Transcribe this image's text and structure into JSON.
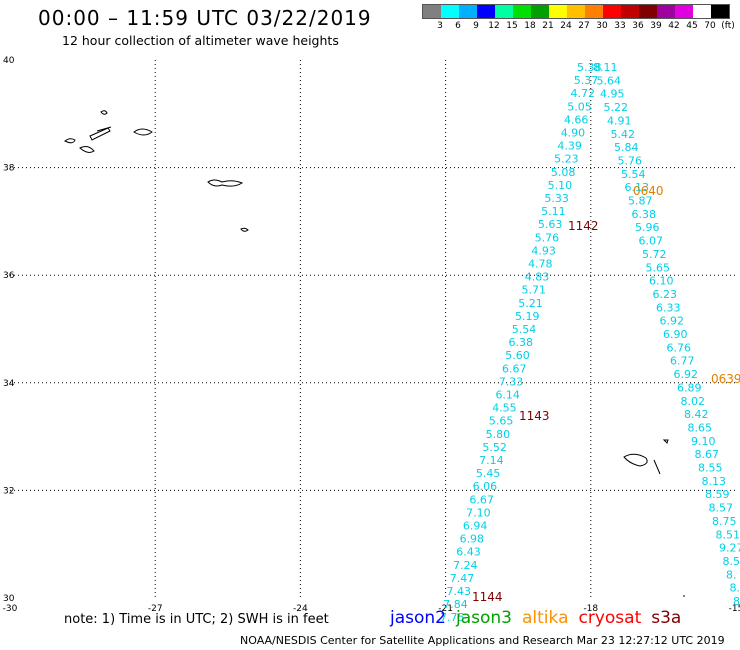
{
  "header": {
    "title": "00:00 – 11:59 UTC 03/22/2019",
    "subtitle": "12 hour collection of altimeter wave heights"
  },
  "color_legend": {
    "colors": [
      "#808080",
      "#00ffff",
      "#00b0ff",
      "#0000ff",
      "#00ffa0",
      "#00e000",
      "#00a000",
      "#ffff00",
      "#ffc000",
      "#ff8000",
      "#ff0000",
      "#c00000",
      "#800000",
      "#a000a0",
      "#e000e0",
      "#ffffff",
      "#000000"
    ],
    "tick_labels": [
      "3",
      "6",
      "9",
      "12",
      "15",
      "18",
      "21",
      "24",
      "27",
      "30",
      "33",
      "36",
      "39",
      "42",
      "45",
      "70",
      "(ft)"
    ]
  },
  "map": {
    "lon_range": [
      -30,
      -15
    ],
    "lat_range": [
      30,
      40
    ],
    "lon_ticks": [
      "-30",
      "-27",
      "-24",
      "-21",
      "-18",
      "-15"
    ],
    "lat_ticks": [
      "30",
      "32",
      "34",
      "36",
      "38",
      "40"
    ]
  },
  "tracks": {
    "pass_1142": [
      "5.38",
      "5.37",
      "4.72",
      "5.05",
      "4.66",
      "4.90",
      "4.39",
      "5.23",
      "5.08",
      "5.10",
      "5.33",
      "5.11",
      "5.63",
      "5.76",
      "4.93",
      "4.78",
      "4.83",
      "5.71",
      "5.21",
      "5.19",
      "5.54",
      "6.38",
      "5.60",
      "6.67",
      "7.33",
      "6.14",
      "4.55",
      "5.65",
      "5.80",
      "5.52",
      "7.14",
      "5.45",
      "6.06",
      "6.67",
      "7.10",
      "6.94",
      "6.98",
      "6.43",
      "7.24",
      "7.47",
      "7.43",
      "7.84",
      "7.75"
    ],
    "pass_0640": [
      "8.11",
      "5.64",
      "4.95",
      "5.22",
      "4.91",
      "5.42",
      "5.84",
      "5.76",
      "5.54",
      "6.13",
      "5.87",
      "6.38",
      "5.96",
      "6.07",
      "5.72",
      "5.65",
      "6.10",
      "6.23",
      "6.33",
      "6.92",
      "6.90",
      "6.76",
      "6.77",
      "6.92",
      "6.89",
      "8.02",
      "8.42",
      "8.65",
      "9.10",
      "8.67",
      "8.55",
      "8.13",
      "8.59",
      "8.57",
      "8.75",
      "8.51",
      "9.27",
      "8.5",
      "8.",
      "8.",
      "8."
    ],
    "time_labels": [
      {
        "text": "0640",
        "color": "#e08000"
      },
      {
        "text": "1142",
        "color": "#800000"
      },
      {
        "text": "0639",
        "color": "#e08000"
      },
      {
        "text": "1143",
        "color": "#800000"
      },
      {
        "text": "1144",
        "color": "#800000"
      }
    ]
  },
  "footer": {
    "note": "note: 1) Time is in UTC; 2) SWH is in feet",
    "credit": "NOAA/NESDIS Center for Satellite Applications and Research    Mar 23 12:27:12 UTC 2019",
    "satellites": [
      {
        "name": "jason2",
        "color": "#0000ff"
      },
      {
        "name": "jason3",
        "color": "#00a000"
      },
      {
        "name": "altika",
        "color": "#ff9000"
      },
      {
        "name": "cryosat",
        "color": "#ff0000"
      },
      {
        "name": "s3a",
        "color": "#800000"
      }
    ]
  }
}
